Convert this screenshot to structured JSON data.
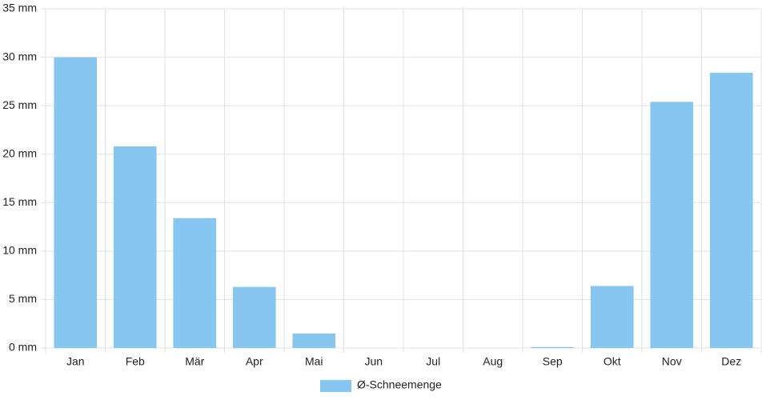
{
  "chart_data": {
    "type": "bar",
    "categories": [
      "Jan",
      "Feb",
      "Mär",
      "Apr",
      "Mai",
      "Jun",
      "Jul",
      "Aug",
      "Sep",
      "Okt",
      "Nov",
      "Dez"
    ],
    "series": [
      {
        "name": "Ø-Schneemenge",
        "color": "#87c6f1",
        "values": [
          30,
          20.8,
          13.4,
          6.3,
          1.5,
          0,
          0,
          0,
          0.1,
          6.4,
          25.4,
          28.4
        ]
      }
    ],
    "ylim": [
      0,
      35
    ],
    "yticks": [
      {
        "value": 0,
        "label": "0 mm"
      },
      {
        "value": 5,
        "label": "5 mm"
      },
      {
        "value": 10,
        "label": "10 mm"
      },
      {
        "value": 15,
        "label": "15 mm"
      },
      {
        "value": 20,
        "label": "20 mm"
      },
      {
        "value": 25,
        "label": "25 mm"
      },
      {
        "value": 30,
        "label": "30 mm"
      },
      {
        "value": 35,
        "label": "35 mm"
      }
    ],
    "grid": true,
    "legend": "bottom"
  }
}
